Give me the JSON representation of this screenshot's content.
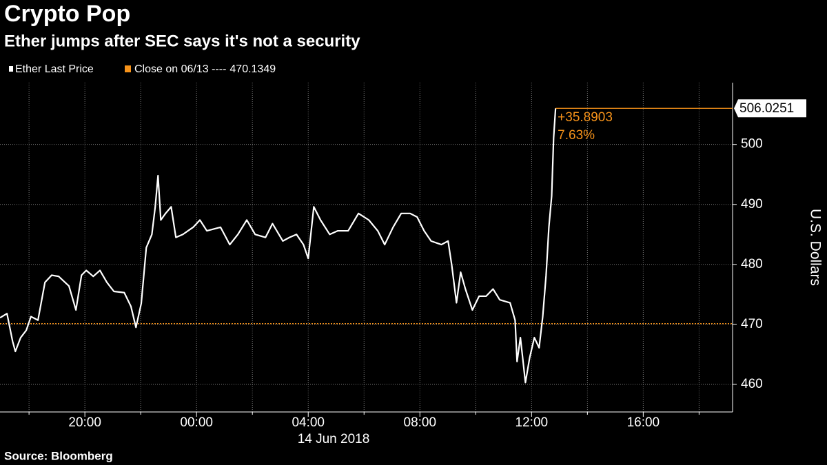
{
  "chart_data": {
    "type": "line",
    "title": "Crypto Pop",
    "subtitle": "Ether jumps after SEC says it's not a security",
    "y_axis_label": "U.S. Dollars",
    "x_axis_date_label": "14 Jun 2018",
    "source": "Source: Bloomberg",
    "x": [
      -7.04,
      -6.79,
      -6.59,
      -6.49,
      -6.3,
      -6.1,
      -5.93,
      -5.68,
      -5.43,
      -5.19,
      -4.94,
      -4.57,
      -4.32,
      -4.12,
      -3.95,
      -3.7,
      -3.46,
      -3.21,
      -2.96,
      -2.59,
      -2.35,
      -2.17,
      -1.98,
      -1.8,
      -1.6,
      -1.48,
      -1.38,
      -1.28,
      -1.11,
      -0.91,
      -0.74,
      -0.49,
      -0.12,
      0.12,
      0.37,
      0.86,
      1.19,
      1.48,
      1.8,
      2.1,
      2.47,
      2.72,
      3.09,
      3.33,
      3.58,
      3.83,
      4.0,
      4.2,
      4.44,
      4.77,
      5.06,
      5.43,
      5.8,
      6.17,
      6.49,
      6.74,
      7.04,
      7.33,
      7.65,
      7.9,
      8.15,
      8.4,
      8.77,
      9.01,
      9.14,
      9.31,
      9.46,
      9.63,
      9.88,
      10.12,
      10.37,
      10.62,
      10.86,
      11.23,
      11.41,
      11.48,
      11.6,
      11.78,
      11.93,
      12.1,
      12.27,
      12.4,
      12.52,
      12.62,
      12.72,
      12.79,
      12.86
    ],
    "series": [
      {
        "name": "Ether Last Price",
        "color": "#ffffff",
        "values": [
          471.1,
          471.8,
          467.2,
          465.5,
          467.8,
          469,
          471.3,
          470.7,
          477,
          478.2,
          478,
          476.4,
          472.4,
          478.2,
          479,
          478,
          479,
          477,
          475.5,
          475.3,
          473,
          469.5,
          473.5,
          482.8,
          485,
          489.6,
          494.8,
          487.4,
          488.5,
          489.6,
          484.5,
          485,
          486.2,
          487.4,
          485.6,
          486.2,
          483.3,
          485,
          487.4,
          485,
          484.5,
          486.8,
          483.9,
          484.5,
          485,
          483.3,
          481,
          489.6,
          487.4,
          485,
          485.6,
          485.6,
          488.5,
          487.4,
          485.6,
          483.3,
          486.2,
          488.5,
          488.5,
          487.9,
          485.6,
          483.9,
          483.3,
          483.9,
          479.9,
          473.6,
          478.7,
          475.9,
          472.4,
          474.7,
          474.7,
          475.9,
          474.1,
          473.6,
          470.7,
          463.8,
          467.8,
          460.3,
          464.4,
          467.8,
          466.1,
          471.3,
          478.2,
          486.2,
          491.4,
          501.1,
          506.0251
        ]
      }
    ],
    "reference_line": {
      "name": "Close on 06/13 ----",
      "value": 470.1349,
      "color": "#f7931a"
    },
    "annotations": [
      "+35.8903",
      "7.63%"
    ],
    "annotation_color": "#f7931a",
    "xlim": [
      -7.04,
      19.2
    ],
    "xticks": [
      {
        "value": -4,
        "label": "20:00"
      },
      {
        "value": 0,
        "label": "00:00"
      },
      {
        "value": 4,
        "label": "04:00"
      },
      {
        "value": 8,
        "label": "08:00"
      },
      {
        "value": 12,
        "label": "12:00"
      },
      {
        "value": 16,
        "label": "16:00"
      }
    ],
    "xminorticks": [
      -6,
      -2,
      2,
      6,
      10,
      14,
      18
    ],
    "ylim": [
      455.4,
      510.3
    ],
    "yticks": [
      460,
      470,
      480,
      490,
      500
    ],
    "grid": true
  }
}
